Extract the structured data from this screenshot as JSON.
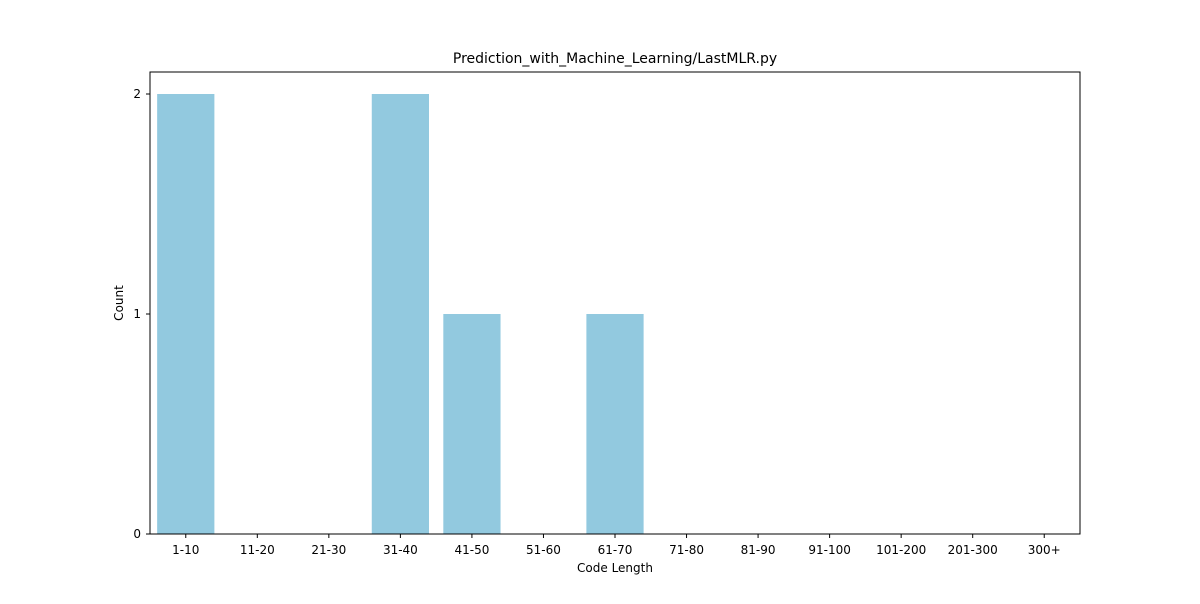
{
  "chart_data": {
    "type": "bar",
    "title": "Prediction_with_Machine_Learning/LastMLR.py",
    "xlabel": "Code Length",
    "ylabel": "Count",
    "categories": [
      "1-10",
      "11-20",
      "21-30",
      "31-40",
      "41-50",
      "51-60",
      "61-70",
      "71-80",
      "81-90",
      "91-100",
      "101-200",
      "201-300",
      "300+"
    ],
    "values": [
      2,
      0,
      0,
      2,
      1,
      0,
      1,
      0,
      0,
      0,
      0,
      0,
      0
    ],
    "ylim": [
      0,
      2.1
    ],
    "yticks": [
      0,
      1,
      2
    ],
    "grid": false,
    "bar_color": "#92c9df"
  }
}
